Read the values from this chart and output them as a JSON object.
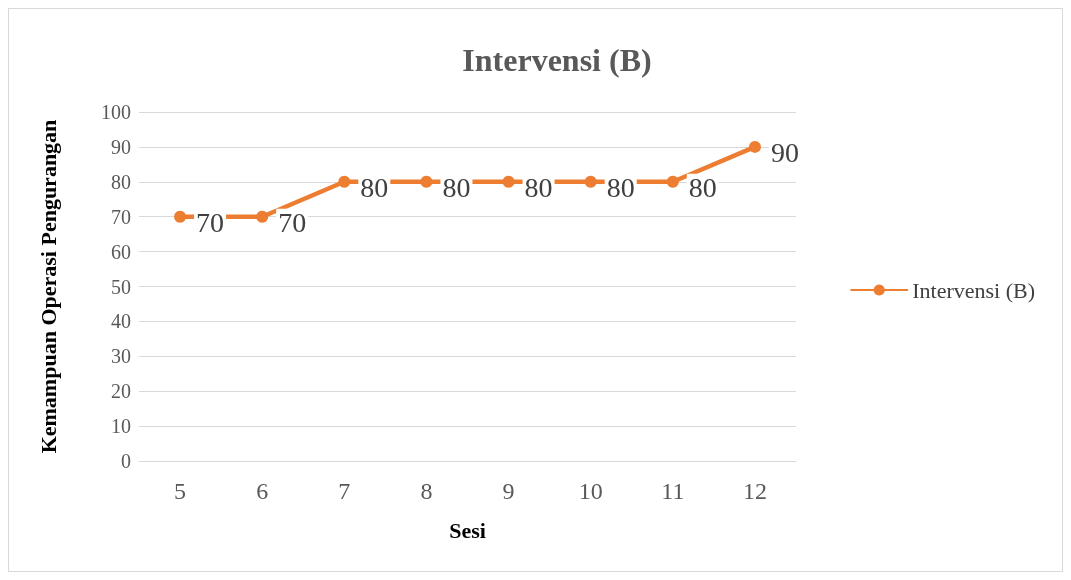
{
  "chart_data": {
    "type": "line",
    "title": "Intervensi (B)",
    "xlabel": "Sesi",
    "ylabel": "Kemampuan Operasi Pengurangan",
    "categories": [
      "5",
      "6",
      "7",
      "8",
      "9",
      "10",
      "11",
      "12"
    ],
    "series": [
      {
        "name": "Intervensi (B)",
        "color": "#ed7d31",
        "values": [
          70,
          70,
          80,
          80,
          80,
          80,
          80,
          90
        ]
      }
    ],
    "ylim": [
      0,
      100
    ],
    "yticks": [
      0,
      10,
      20,
      30,
      40,
      50,
      60,
      70,
      80,
      90,
      100
    ],
    "grid": "y",
    "legend": "right",
    "marker": "circle",
    "line_style": "solid",
    "data_labels": true
  }
}
